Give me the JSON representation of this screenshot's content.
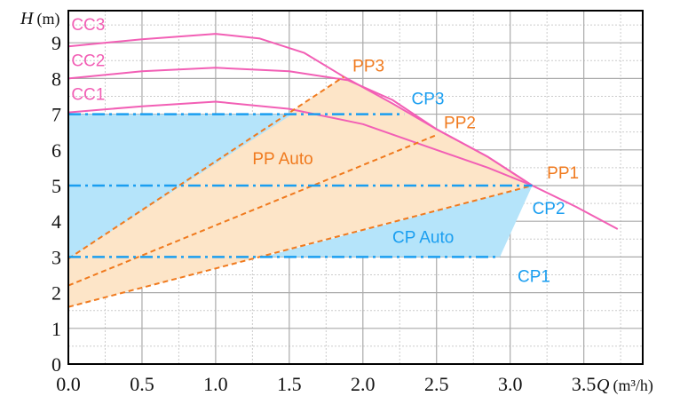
{
  "chart_data": {
    "type": "line",
    "xlabel": "Q (m³/h)",
    "xlabel_var": "Q",
    "xlabel_unit": "(m³/h)",
    "ylabel_var": "H",
    "ylabel_unit": "(m)",
    "xlim": [
      0,
      3.9
    ],
    "ylim": [
      0,
      9.9
    ],
    "grid": true,
    "x_ticks": [
      "0.0",
      "0.5",
      "1.0",
      "1.5",
      "2.0",
      "2.5",
      "3.0",
      "3.5"
    ],
    "y_ticks": [
      "0",
      "1",
      "2",
      "3",
      "4",
      "5",
      "6",
      "7",
      "8",
      "9"
    ],
    "colors": {
      "cc": "#f25fb5",
      "pp": "#f07a1e",
      "cp": "#1a9ef0",
      "pp_fill": "#fde5c8",
      "cp_fill": "#b5e4fa"
    },
    "series": [
      {
        "name": "CC3",
        "style": "solid",
        "points": [
          [
            0,
            8.9
          ],
          [
            0.5,
            9.1
          ],
          [
            1.0,
            9.25
          ],
          [
            1.3,
            9.12
          ],
          [
            1.6,
            8.72
          ],
          [
            1.87,
            8.05
          ],
          [
            2.2,
            7.3
          ],
          [
            2.5,
            6.58
          ],
          [
            2.85,
            5.8
          ],
          [
            3.15,
            5.0
          ],
          [
            3.45,
            4.4
          ],
          [
            3.73,
            3.78
          ]
        ]
      },
      {
        "name": "CC2",
        "style": "solid",
        "points": [
          [
            0,
            8.0
          ],
          [
            0.5,
            8.2
          ],
          [
            1.0,
            8.3
          ],
          [
            1.5,
            8.2
          ],
          [
            1.9,
            7.95
          ],
          [
            2.2,
            7.4
          ],
          [
            2.5,
            6.58
          ],
          [
            2.85,
            5.8
          ],
          [
            3.15,
            5.0
          ]
        ]
      },
      {
        "name": "CC1",
        "style": "solid",
        "points": [
          [
            0,
            7.05
          ],
          [
            0.5,
            7.22
          ],
          [
            1.0,
            7.35
          ],
          [
            1.5,
            7.15
          ],
          [
            2.0,
            6.72
          ],
          [
            2.5,
            6.0
          ],
          [
            2.85,
            5.5
          ],
          [
            3.15,
            5.0
          ]
        ]
      },
      {
        "name": "PP3",
        "style": "dashed",
        "points": [
          [
            0,
            2.95
          ],
          [
            1.87,
            8.05
          ]
        ]
      },
      {
        "name": "PP2",
        "style": "dashed",
        "points": [
          [
            0,
            2.2
          ],
          [
            2.49,
            6.4
          ]
        ]
      },
      {
        "name": "PP1",
        "style": "dashed",
        "points": [
          [
            0,
            1.6
          ],
          [
            3.15,
            5.0
          ]
        ]
      },
      {
        "name": "CP3",
        "style": "dash-dot",
        "points": [
          [
            0,
            7.0
          ],
          [
            2.28,
            7.0
          ]
        ]
      },
      {
        "name": "CP2",
        "style": "dash-dot",
        "points": [
          [
            0,
            5.0
          ],
          [
            3.15,
            5.0
          ]
        ]
      },
      {
        "name": "CP1",
        "style": "dash-dot",
        "points": [
          [
            0,
            3.0
          ],
          [
            2.93,
            3.0
          ]
        ]
      }
    ],
    "regions": [
      {
        "name": "PP Auto",
        "points": [
          [
            0,
            1.6
          ],
          [
            0,
            2.95
          ],
          [
            1.87,
            8.05
          ],
          [
            2.2,
            7.3
          ],
          [
            2.5,
            6.58
          ],
          [
            2.85,
            5.8
          ],
          [
            3.15,
            5.0
          ]
        ]
      },
      {
        "name": "CP Auto",
        "points": [
          [
            1.32,
            3.0
          ],
          [
            2.93,
            3.0
          ],
          [
            3.15,
            5.0
          ]
        ]
      },
      {
        "name": "",
        "points": [
          [
            0,
            2.95
          ],
          [
            0,
            7.0
          ],
          [
            1.52,
            7.0
          ]
        ]
      }
    ]
  }
}
